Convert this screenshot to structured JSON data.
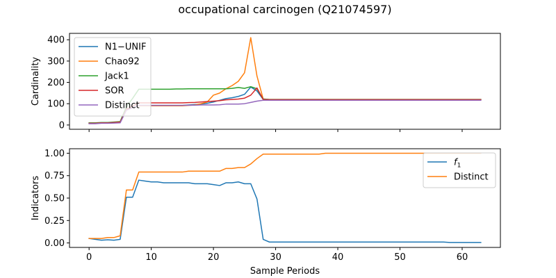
{
  "title": "occupational carcinogen (Q21074597)",
  "chart_data": [
    {
      "type": "line",
      "ylabel": "Cardinality",
      "xlabel": "",
      "xlim": [
        -3.15,
        66.15
      ],
      "ylim": [
        -20,
        430
      ],
      "xticks": [
        0,
        10,
        20,
        30,
        40,
        50,
        60
      ],
      "yticks": [
        0,
        100,
        200,
        300,
        400
      ],
      "legend": "top-left",
      "x": [
        0,
        1,
        2,
        3,
        4,
        5,
        6,
        7,
        8,
        9,
        10,
        11,
        12,
        13,
        14,
        15,
        16,
        17,
        18,
        19,
        20,
        21,
        22,
        23,
        24,
        25,
        26,
        27,
        28,
        29,
        30,
        31,
        32,
        33,
        34,
        35,
        36,
        37,
        38,
        39,
        40,
        41,
        42,
        43,
        44,
        45,
        46,
        47,
        48,
        49,
        50,
        51,
        52,
        53,
        54,
        55,
        56,
        57,
        58,
        59,
        60,
        61,
        62,
        63
      ],
      "series": [
        {
          "name": "N1−UNIF",
          "color": "#1f77b4",
          "values": [
            8,
            8,
            10,
            10,
            12,
            14,
            72,
            82,
            92,
            92,
            92,
            92,
            92,
            92,
            92,
            92,
            94,
            96,
            98,
            102,
            108,
            116,
            124,
            128,
            134,
            144,
            178,
            160,
            120,
            119,
            119,
            119,
            119,
            119,
            119,
            119,
            119,
            119,
            119,
            119,
            119,
            119,
            119,
            119,
            119,
            119,
            119,
            119,
            119,
            119,
            119,
            119,
            119,
            119,
            119,
            119,
            119,
            119,
            119,
            119,
            119,
            119,
            119,
            119
          ]
        },
        {
          "name": "Chao92",
          "color": "#ff7f0e",
          "values": [
            8,
            8,
            10,
            10,
            12,
            14,
            70,
            80,
            90,
            90,
            90,
            90,
            90,
            90,
            90,
            90,
            92,
            94,
            100,
            108,
            140,
            150,
            170,
            185,
            205,
            245,
            410,
            230,
            122,
            120,
            120,
            120,
            120,
            120,
            120,
            120,
            120,
            120,
            120,
            120,
            120,
            120,
            120,
            120,
            120,
            120,
            120,
            120,
            120,
            120,
            120,
            120,
            120,
            120,
            120,
            120,
            120,
            120,
            120,
            120,
            120,
            120,
            120,
            120
          ]
        },
        {
          "name": "Jack1",
          "color": "#2ca02c",
          "values": [
            10,
            10,
            12,
            12,
            14,
            16,
            85,
            125,
            168,
            168,
            168,
            168,
            168,
            168,
            169,
            169,
            170,
            170,
            170,
            170,
            170,
            170,
            170,
            172,
            176,
            172,
            180,
            170,
            122,
            120,
            120,
            120,
            120,
            120,
            120,
            120,
            120,
            120,
            120,
            120,
            120,
            120,
            120,
            120,
            120,
            120,
            120,
            120,
            120,
            120,
            120,
            120,
            120,
            120,
            120,
            120,
            120,
            120,
            120,
            120,
            120,
            120,
            120,
            120
          ]
        },
        {
          "name": "SOR",
          "color": "#d62728",
          "values": [
            8,
            8,
            10,
            10,
            12,
            14,
            74,
            88,
            104,
            104,
            104,
            104,
            104,
            104,
            104,
            104,
            105,
            106,
            108,
            110,
            112,
            114,
            118,
            120,
            122,
            126,
            140,
            174,
            120,
            119,
            119,
            119,
            119,
            119,
            119,
            119,
            119,
            119,
            119,
            119,
            119,
            119,
            119,
            119,
            119,
            119,
            119,
            119,
            119,
            119,
            119,
            119,
            119,
            119,
            119,
            119,
            119,
            119,
            119,
            119,
            119,
            119,
            119,
            119
          ]
        },
        {
          "name": "Distinct",
          "color": "#9467bd",
          "values": [
            6,
            6,
            8,
            8,
            9,
            10,
            70,
            80,
            92,
            92,
            92,
            92,
            92,
            92,
            92,
            92,
            93,
            93,
            94,
            94,
            94,
            95,
            98,
            98,
            98,
            100,
            106,
            112,
            116,
            116,
            116,
            116,
            116,
            116,
            116,
            116,
            116,
            116,
            116,
            116,
            116,
            116,
            116,
            116,
            116,
            116,
            116,
            116,
            116,
            116,
            116,
            116,
            116,
            116,
            116,
            116,
            116,
            116,
            116,
            116,
            116,
            116,
            116,
            116
          ]
        }
      ]
    },
    {
      "type": "line",
      "ylabel": "Indicators",
      "xlabel": "Sample Periods",
      "xlim": [
        -3.15,
        66.15
      ],
      "ylim": [
        -0.05,
        1.05
      ],
      "xticks": [
        0,
        10,
        20,
        30,
        40,
        50,
        60
      ],
      "yticks": [
        0.0,
        0.25,
        0.5,
        0.75,
        1.0
      ],
      "yticklabels": [
        "0.00",
        "0.25",
        "0.50",
        "0.75",
        "1.00"
      ],
      "legend": "top-right",
      "x": [
        0,
        1,
        2,
        3,
        4,
        5,
        6,
        7,
        8,
        9,
        10,
        11,
        12,
        13,
        14,
        15,
        16,
        17,
        18,
        19,
        20,
        21,
        22,
        23,
        24,
        25,
        26,
        27,
        28,
        29,
        30,
        31,
        32,
        33,
        34,
        35,
        36,
        37,
        38,
        39,
        40,
        41,
        42,
        43,
        44,
        45,
        46,
        47,
        48,
        49,
        50,
        51,
        52,
        53,
        54,
        55,
        56,
        57,
        58,
        59,
        60,
        61,
        62,
        63
      ],
      "series": [
        {
          "name": "f1",
          "label_main": "f",
          "label_sub": "1",
          "color": "#1f77b4",
          "values": [
            0.05,
            0.04,
            0.03,
            0.035,
            0.03,
            0.04,
            0.51,
            0.51,
            0.7,
            0.69,
            0.68,
            0.68,
            0.67,
            0.67,
            0.67,
            0.67,
            0.67,
            0.66,
            0.66,
            0.66,
            0.65,
            0.64,
            0.67,
            0.67,
            0.68,
            0.66,
            0.66,
            0.49,
            0.04,
            0.01,
            0.01,
            0.01,
            0.01,
            0.01,
            0.01,
            0.01,
            0.01,
            0.01,
            0.01,
            0.01,
            0.01,
            0.01,
            0.01,
            0.01,
            0.01,
            0.01,
            0.01,
            0.01,
            0.01,
            0.01,
            0.01,
            0.01,
            0.01,
            0.01,
            0.01,
            0.01,
            0.01,
            0.01,
            0.005,
            0.005,
            0.005,
            0.005,
            0.005,
            0.005
          ]
        },
        {
          "name": "Distinct",
          "color": "#ff7f0e",
          "values": [
            0.05,
            0.05,
            0.05,
            0.06,
            0.06,
            0.08,
            0.59,
            0.59,
            0.79,
            0.79,
            0.79,
            0.79,
            0.79,
            0.79,
            0.79,
            0.79,
            0.8,
            0.8,
            0.8,
            0.8,
            0.8,
            0.8,
            0.83,
            0.83,
            0.84,
            0.84,
            0.88,
            0.94,
            0.99,
            0.99,
            0.99,
            0.99,
            0.99,
            0.99,
            0.99,
            0.99,
            0.99,
            0.99,
            1.0,
            1.0,
            1.0,
            1.0,
            1.0,
            1.0,
            1.0,
            1.0,
            1.0,
            1.0,
            1.0,
            1.0,
            1.0,
            1.0,
            1.0,
            1.0,
            1.0,
            1.0,
            1.0,
            1.0,
            1.0,
            1.0,
            1.0,
            1.0,
            1.0,
            1.0
          ]
        }
      ]
    }
  ]
}
